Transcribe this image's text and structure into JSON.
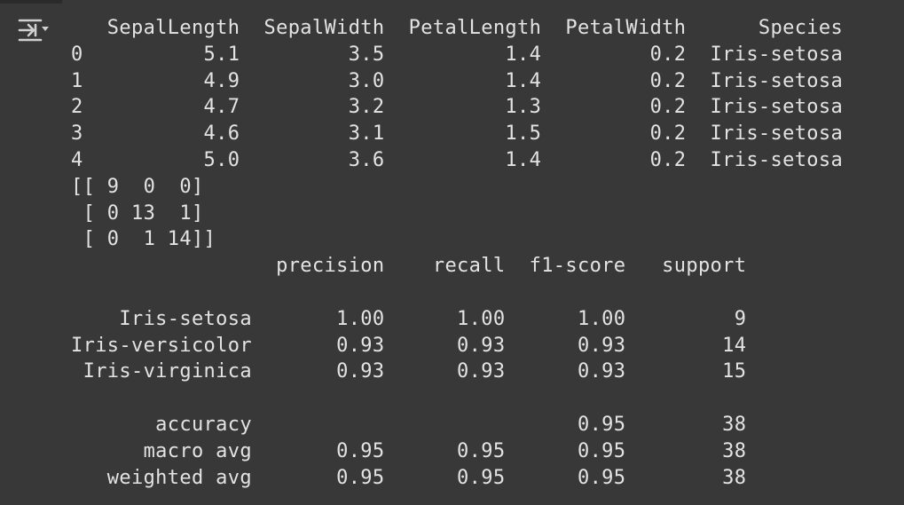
{
  "output_toggle": {
    "icon": "output-collapse-icon",
    "color": "#d0d0d0"
  },
  "colors": {
    "background": "#383838",
    "text": "#e3e3e3"
  },
  "output": {
    "lines": [
      "   SepalLength  SepalWidth  PetalLength  PetalWidth      Species",
      "0          5.1         3.5          1.4         0.2  Iris-setosa",
      "1          4.9         3.0          1.4         0.2  Iris-setosa",
      "2          4.7         3.2          1.3         0.2  Iris-setosa",
      "3          4.6         3.1          1.5         0.2  Iris-setosa",
      "4          5.0         3.6          1.4         0.2  Iris-setosa",
      "[[ 9  0  0]",
      " [ 0 13  1]",
      " [ 0  1 14]]",
      "                 precision    recall  f1-score   support",
      "",
      "    Iris-setosa       1.00      1.00      1.00         9",
      "Iris-versicolor       0.93      0.93      0.93        14",
      " Iris-virginica       0.93      0.93      0.93        15",
      "",
      "       accuracy                           0.95        38",
      "      macro avg       0.95      0.95      0.95        38",
      "   weighted avg       0.95      0.95      0.95        38"
    ]
  }
}
